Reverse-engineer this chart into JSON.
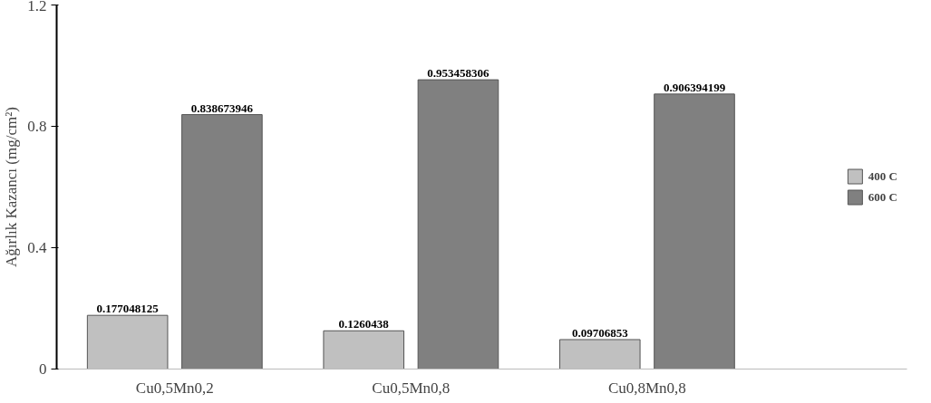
{
  "chart_data": {
    "type": "bar",
    "ylabel": "Ağırlık Kazancı (mg/cm²)",
    "categories": [
      "Cu0,5Mn0,2",
      "Cu0,5Mn0,8",
      "Cu0,8Mn0,8"
    ],
    "series": [
      {
        "name": "400 C",
        "color": "#c0c0c0",
        "values": [
          0.177048125,
          0.1260438,
          0.09706853
        ]
      },
      {
        "name": "600 C",
        "color": "#808080",
        "values": [
          0.838673946,
          0.953458306,
          0.906394199
        ]
      }
    ],
    "ylim": [
      0,
      1.2
    ],
    "yticks": [
      0,
      0.4,
      0.8,
      1.2
    ],
    "grid": false,
    "legend": "right",
    "data_labels": true
  }
}
